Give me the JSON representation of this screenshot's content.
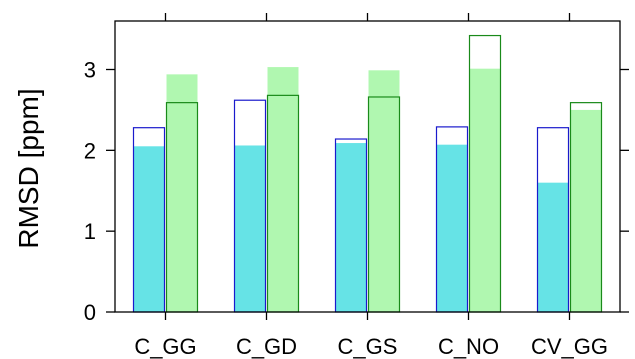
{
  "chart_data": {
    "type": "bar",
    "ylabel": "RMSD [ppm]",
    "xlabel": "",
    "title": "",
    "ylim": [
      0,
      3.6
    ],
    "yticks": [
      0,
      1,
      2,
      3
    ],
    "ytick_labels": [
      "0",
      "1",
      "2",
      "3"
    ],
    "categories": [
      "C_GG",
      "C_GD",
      "C_GS",
      "C_NO",
      "CV_GG"
    ],
    "groups": [
      {
        "outline_color": "#1a1acc",
        "fill_color": "#66e3e6",
        "outline_values": [
          2.28,
          2.62,
          2.14,
          2.29,
          2.28
        ],
        "fill_values": [
          2.05,
          2.06,
          2.09,
          2.07,
          1.6
        ]
      },
      {
        "outline_color": "#1a8a1a",
        "fill_color": "#b0f7b0",
        "outline_values": [
          2.59,
          2.68,
          2.66,
          3.42,
          2.59
        ],
        "fill_values": [
          2.94,
          3.03,
          2.99,
          3.01,
          2.5
        ]
      }
    ],
    "grid": false,
    "legend": "none"
  }
}
